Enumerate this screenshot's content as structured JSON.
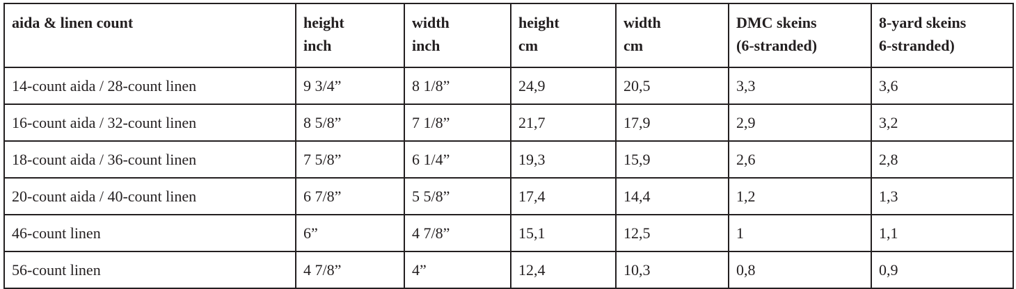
{
  "table": {
    "header": [
      [
        "aida & linen count"
      ],
      [
        "height",
        "inch"
      ],
      [
        "width",
        "inch"
      ],
      [
        "height",
        "cm"
      ],
      [
        "width",
        "cm"
      ],
      [
        "DMC skeins",
        "(6-stranded)"
      ],
      [
        "8-yard skeins",
        "6-stranded)"
      ]
    ],
    "rows": [
      [
        "14-count aida / 28-count linen",
        "9 3/4”",
        "8 1/8”",
        "24,9",
        "20,5",
        "3,3",
        "3,6"
      ],
      [
        "16-count aida / 32-count linen",
        "8 5/8”",
        "7 1/8”",
        "21,7",
        "17,9",
        "2,9",
        "3,2"
      ],
      [
        "18-count aida / 36-count linen",
        "7 5/8”",
        "6 1/4”",
        "19,3",
        "15,9",
        "2,6",
        "2,8"
      ],
      [
        "20-count aida / 40-count linen",
        "6 7/8”",
        "5 5/8”",
        "17,4",
        "14,4",
        "1,2",
        "1,3"
      ],
      [
        "46-count linen",
        "6”",
        "4 7/8”",
        "15,1",
        "12,5",
        "1",
        "1,1"
      ],
      [
        "56-count linen",
        "4 7/8”",
        "4”",
        "12,4",
        "10,3",
        "0,8",
        "0,9"
      ]
    ]
  }
}
